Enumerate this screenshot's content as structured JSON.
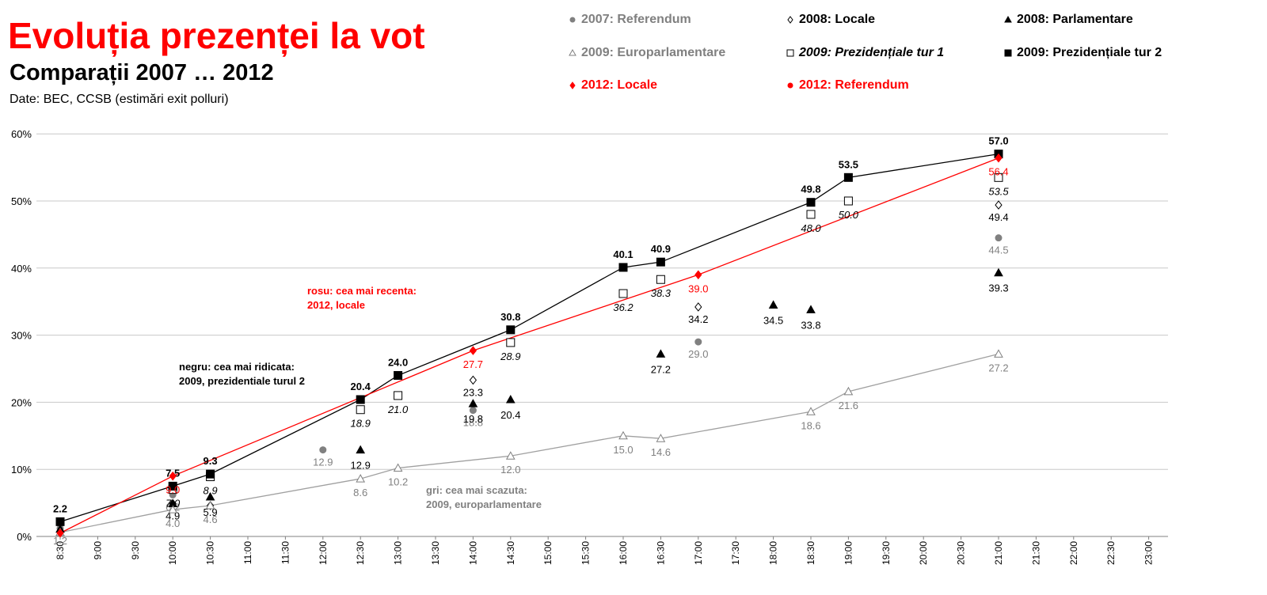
{
  "header": {
    "title": "Evoluția prezenței la vot",
    "subtitle": "Comparații 2007 … 2012",
    "source": "Date: BEC, CCSB (estimări exit polluri)"
  },
  "legend": [
    {
      "key": "ref2007",
      "label": "2007: Referendum",
      "color": "#808080",
      "marker": "circle",
      "italic": false
    },
    {
      "key": "loc2008",
      "label": "2008: Locale",
      "color": "#000000",
      "marker": "diamond-open",
      "italic": false
    },
    {
      "key": "parl2008",
      "label": "2008: Parlamentare",
      "color": "#000000",
      "marker": "triangle",
      "italic": false
    },
    {
      "key": "euro2009",
      "label": "2009: Europarlamentare",
      "color": "#808080",
      "marker": "triangle-open",
      "italic": false
    },
    {
      "key": "prez1_2009",
      "label": "2009: Prezidențiale tur 1",
      "color": "#000000",
      "marker": "square-open",
      "italic": true
    },
    {
      "key": "prez2_2009",
      "label": "2009: Prezidențiale tur 2",
      "color": "#000000",
      "marker": "square",
      "italic": false
    },
    {
      "key": "loc2012",
      "label": "2012: Locale",
      "color": "#ff0000",
      "marker": "diamond",
      "italic": false
    },
    {
      "key": "ref2012",
      "label": "2012: Referendum",
      "color": "#ff0000",
      "marker": "circle",
      "italic": false
    }
  ],
  "chart_data": {
    "type": "line",
    "y_unit": "%",
    "ylim": [
      0,
      60
    ],
    "yticks": [
      "0%",
      "10%",
      "20%",
      "30%",
      "40%",
      "50%",
      "60%"
    ],
    "x_categories": [
      "8:30",
      "9:00",
      "9:30",
      "10:00",
      "10:30",
      "11:00",
      "11:30",
      "12:00",
      "12:30",
      "13:00",
      "13:30",
      "14:00",
      "14:30",
      "15:00",
      "15:30",
      "16:00",
      "16:30",
      "17:00",
      "17:30",
      "18:00",
      "18:30",
      "19:00",
      "19:30",
      "20:00",
      "20:30",
      "21:00",
      "21:30",
      "22:00",
      "22:30",
      "23:00"
    ],
    "grid": true,
    "series": [
      {
        "key": "ref2007",
        "name": "2007: Referendum",
        "color": "#808080",
        "marker": "circle",
        "line": false,
        "label_style": "normal",
        "points": [
          [
            "8:30",
            1.2
          ],
          [
            "10:00",
            6.2
          ],
          [
            "12:00",
            12.9
          ],
          [
            "14:00",
            18.8
          ],
          [
            "17:00",
            29.0
          ],
          [
            "21:00",
            44.5
          ]
        ],
        "labels": [
          "1.2",
          "6.2",
          "12.9",
          "18.8",
          "29.0",
          "44.5"
        ]
      },
      {
        "key": "loc2008",
        "name": "2008: Locale",
        "color": "#000000",
        "marker": "diamond-open",
        "line": false,
        "label_style": "normal",
        "points": [
          [
            "10:00",
            4.9
          ],
          [
            "10:30",
            4.6
          ],
          [
            "14:00",
            23.3
          ],
          [
            "17:00",
            34.2
          ],
          [
            "21:00",
            49.4
          ]
        ],
        "labels": [
          "4.9",
          "",
          "23.3",
          "34.2",
          "49.4"
        ]
      },
      {
        "key": "parl2008",
        "name": "2008: Parlamentare",
        "color": "#000000",
        "marker": "triangle",
        "line": false,
        "label_style": "normal",
        "points": [
          [
            "8:30",
            1.1
          ],
          [
            "10:00",
            4.9
          ],
          [
            "10:30",
            5.9
          ],
          [
            "12:30",
            12.9
          ],
          [
            "14:00",
            19.8
          ],
          [
            "14:30",
            20.4
          ],
          [
            "16:30",
            27.2
          ],
          [
            "18:00",
            34.5
          ],
          [
            "18:30",
            33.8
          ],
          [
            "21:00",
            39.3
          ]
        ],
        "labels": [
          "",
          "",
          "5.9",
          "12.9",
          "19.8",
          "20.4",
          "27.2",
          "34.5",
          "33.8",
          "39.3"
        ]
      },
      {
        "key": "euro2009",
        "name": "2009: Europarlamentare",
        "color": "#808080",
        "marker": "triangle-open",
        "line": true,
        "label_style": "normal",
        "points": [
          [
            "8:30",
            0.6
          ],
          [
            "10:00",
            4.0
          ],
          [
            "10:30",
            4.6
          ],
          [
            "12:30",
            8.6
          ],
          [
            "13:00",
            10.2
          ],
          [
            "14:30",
            12.0
          ],
          [
            "16:00",
            15.0
          ],
          [
            "16:30",
            14.6
          ],
          [
            "18:30",
            18.6
          ],
          [
            "19:00",
            21.6
          ],
          [
            "21:00",
            27.2
          ]
        ],
        "labels": [
          "",
          "4.0",
          "4.6",
          "8.6",
          "10.2",
          "12.0",
          "15.0",
          "14.6",
          "18.6",
          "21.6",
          "27.2"
        ]
      },
      {
        "key": "prez1_2009",
        "name": "2009: Prezidențiale tur 1",
        "color": "#000000",
        "marker": "square-open",
        "line": false,
        "label_style": "italic",
        "points": [
          [
            "10:00",
            7.0
          ],
          [
            "10:30",
            8.9
          ],
          [
            "12:30",
            18.9
          ],
          [
            "13:00",
            21.0
          ],
          [
            "14:30",
            28.9
          ],
          [
            "16:00",
            36.2
          ],
          [
            "16:30",
            38.3
          ],
          [
            "18:30",
            48.0
          ],
          [
            "19:00",
            50.0
          ],
          [
            "21:00",
            53.5
          ]
        ],
        "labels": [
          "7.0",
          "8.9",
          "18.9",
          "21.0",
          "28.9",
          "36.2",
          "38.3",
          "48.0",
          "50.0",
          "53.5"
        ]
      },
      {
        "key": "prez2_2009",
        "name": "2009: Prezidențiale tur 2",
        "color": "#000000",
        "marker": "square",
        "line": true,
        "label_style": "bold",
        "points": [
          [
            "8:30",
            2.2
          ],
          [
            "10:00",
            7.5
          ],
          [
            "10:30",
            9.3
          ],
          [
            "12:30",
            20.4
          ],
          [
            "13:00",
            24.0
          ],
          [
            "14:30",
            30.8
          ],
          [
            "16:00",
            40.1
          ],
          [
            "16:30",
            40.9
          ],
          [
            "18:30",
            49.8
          ],
          [
            "19:00",
            53.5
          ],
          [
            "21:00",
            57.0
          ]
        ],
        "labels": [
          "2.2",
          "7.5",
          "9.3",
          "20.4",
          "24.0",
          "30.8",
          "40.1",
          "40.9",
          "49.8",
          "53.5",
          "57.0"
        ]
      },
      {
        "key": "loc2012",
        "name": "2012: Locale",
        "color": "#ff0000",
        "marker": "diamond",
        "line": true,
        "label_style": "normal",
        "points": [
          [
            "8:30",
            0.5
          ],
          [
            "10:00",
            9.0
          ],
          [
            "14:00",
            27.7
          ],
          [
            "17:00",
            39.0
          ],
          [
            "21:00",
            56.4
          ]
        ],
        "labels": [
          "",
          "9.0",
          "27.7",
          "39.0",
          "56.4"
        ]
      }
    ],
    "annotations": [
      {
        "lines": [
          "rosu: cea mai recenta:",
          "2012, locale"
        ],
        "color": "#ff0000"
      },
      {
        "lines": [
          "negru: cea mai ridicata:",
          "2009, prezidentiale turul 2"
        ],
        "color": "#000000"
      },
      {
        "lines": [
          "gri: cea mai scazuta:",
          "2009, europarlamentare"
        ],
        "color": "#808080"
      }
    ]
  }
}
